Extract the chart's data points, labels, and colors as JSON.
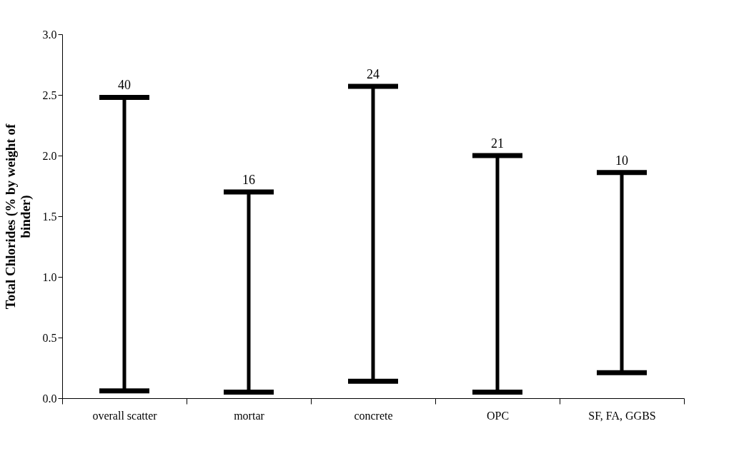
{
  "chart_data": {
    "type": "bar",
    "ylabel": "Total Chlorides (% by weight of binder)",
    "categories": [
      "overall scatter",
      "mortar",
      "concrete",
      "OPC",
      "SF, FA, GGBS"
    ],
    "base": [
      0.06,
      0.05,
      0.14,
      0.05,
      0.21
    ],
    "values": [
      2.42,
      1.65,
      2.43,
      1.95,
      1.65
    ],
    "color": "#000000",
    "ylim": [
      0,
      3.0
    ],
    "yticks": [
      {
        "value": 0,
        "label": "0.0"
      },
      {
        "value": 0.5,
        "label": "0.5"
      },
      {
        "value": 1,
        "label": "1.0"
      },
      {
        "value": 1.5,
        "label": "1.5"
      },
      {
        "value": 2,
        "label": "2.0"
      },
      {
        "value": 2.5,
        "label": "2.5"
      },
      {
        "value": 3,
        "label": "3.0"
      }
    ],
    "annotations": [
      {
        "text": "40",
        "x": "overall scatter",
        "y": 2.48
      },
      {
        "text": "16",
        "x": "mortar",
        "y": 1.7
      },
      {
        "text": "24",
        "x": "concrete",
        "y": 2.57
      },
      {
        "text": "21",
        "x": "OPC",
        "y": 2.0
      },
      {
        "text": "10",
        "x": "SF, FA, GGBS",
        "y": 1.86
      }
    ],
    "grid": false
  }
}
